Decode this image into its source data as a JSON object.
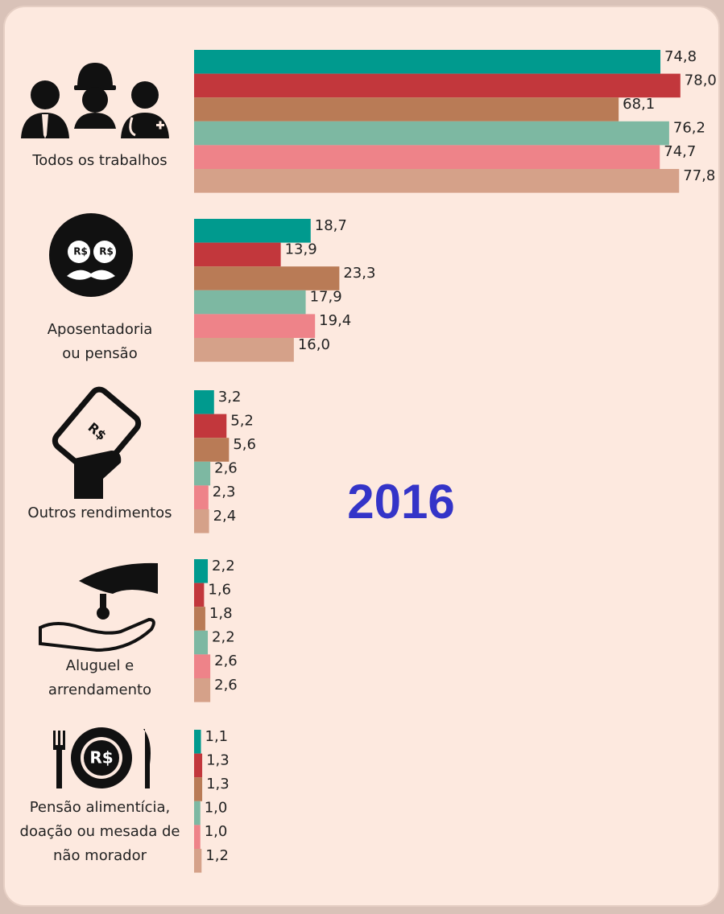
{
  "chart_data": {
    "type": "bar",
    "orientation": "horizontal",
    "annotation": "2016",
    "icon_text": "R$",
    "categories": [
      [
        "Todos os trabalhos"
      ],
      [
        "Aposentadoria",
        "ou pensão"
      ],
      [
        "Outros rendimentos"
      ],
      [
        "Aluguel e",
        "arrendamento"
      ],
      [
        "Pensão alimentícia,",
        "doação ou mesada de",
        "não morador"
      ]
    ],
    "xlim": [
      0,
      85
    ],
    "series": [
      {
        "color": "#009a8e",
        "values": [
          74.8,
          18.7,
          3.2,
          2.2,
          1.1
        ],
        "value_labels": [
          "74,8",
          "18,7",
          "3,2",
          "2,2",
          "1,1"
        ]
      },
      {
        "color": "#c2373c",
        "values": [
          78.0,
          13.9,
          5.2,
          1.6,
          1.3
        ],
        "value_labels": [
          "78,0",
          "13,9",
          "5,2",
          "1,6",
          "1,3"
        ]
      },
      {
        "color": "#b97b56",
        "values": [
          68.1,
          23.3,
          5.6,
          1.8,
          1.3
        ],
        "value_labels": [
          "68,1",
          "23,3",
          "5,6",
          "1,8",
          "1,3"
        ]
      },
      {
        "color": "#7db8a2",
        "values": [
          76.2,
          17.9,
          2.6,
          2.2,
          1.0
        ],
        "value_labels": [
          "76,2",
          "17,9",
          "2,6",
          "2,2",
          "1,0"
        ]
      },
      {
        "color": "#ee8389",
        "values": [
          74.7,
          19.4,
          2.3,
          2.6,
          1.0
        ],
        "value_labels": [
          "74,7",
          "19,4",
          "2,3",
          "2,6",
          "1,0"
        ]
      },
      {
        "color": "#d5a189",
        "values": [
          77.8,
          16.0,
          2.4,
          2.6,
          1.2
        ],
        "value_labels": [
          "77,8",
          "16,0",
          "2,4",
          "2,6",
          "1,2"
        ]
      }
    ]
  }
}
